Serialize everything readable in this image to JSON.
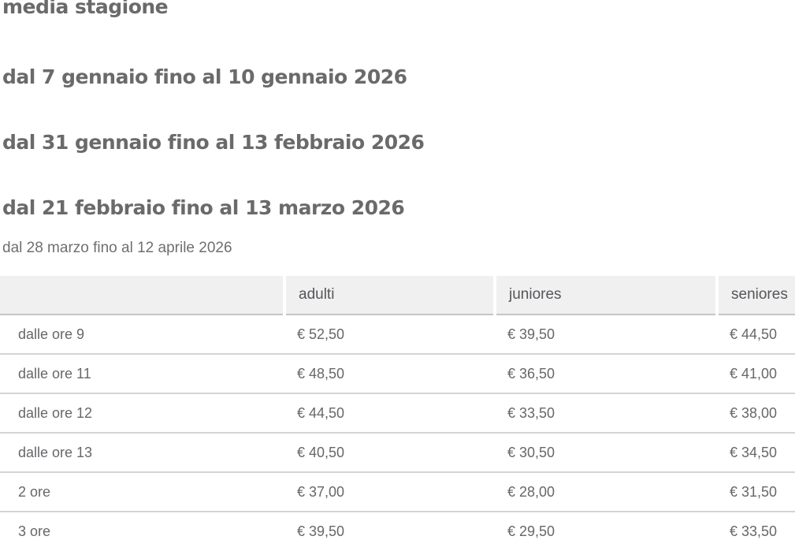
{
  "page": {
    "title": "media stagione",
    "subheadings": [
      "dal 7 gennaio fino al 10 gennaio 2026",
      "dal 31 gennaio fino al 13 febbraio 2026",
      "dal 21 febbraio fino al 13 marzo 2026"
    ],
    "note": "dal 28 marzo fino al 12 aprile 2026"
  },
  "table": {
    "columns": [
      "",
      "adulti",
      "juniores",
      "seniores"
    ],
    "rows": [
      {
        "label": "dalle ore 9",
        "values": [
          "€ 52,50",
          "€ 39,50",
          "€ 44,50"
        ]
      },
      {
        "label": "dalle ore 11",
        "values": [
          "€ 48,50",
          "€ 36,50",
          "€ 41,00"
        ]
      },
      {
        "label": "dalle ore 12",
        "values": [
          "€ 44,50",
          "€ 33,50",
          "€ 38,00"
        ]
      },
      {
        "label": "dalle ore 13",
        "values": [
          "€ 40,50",
          "€ 30,50",
          "€ 34,50"
        ]
      },
      {
        "label": "2 ore",
        "values": [
          "€ 37,00",
          "€ 28,00",
          "€ 31,50"
        ]
      },
      {
        "label": "3 ore",
        "values": [
          "€ 39,50",
          "€ 29,50",
          "€ 33,50"
        ]
      }
    ]
  },
  "colors": {
    "heading_text": "#6a6a6a",
    "body_text": "#66676a",
    "table_header_bg": "#f0f0f0",
    "table_header_border": "#c6c6c6",
    "row_separator": "#d4d4d4"
  }
}
